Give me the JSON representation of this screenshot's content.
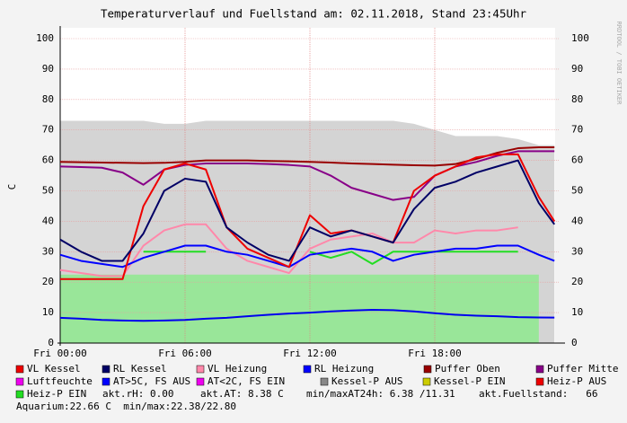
{
  "chart_data": {
    "type": "line",
    "title": "Temperaturverlauf und Fuellstand am: 02.11.2018, Stand 23:45Uhr",
    "y_label": "C",
    "side_text": "RRDTOOL / TOBI OETIKER",
    "x": [
      0,
      1,
      2,
      3,
      4,
      5,
      6,
      7,
      8,
      9,
      10,
      11,
      12,
      13,
      14,
      15,
      16,
      17,
      18,
      19,
      20,
      21,
      22,
      23,
      23.75
    ],
    "xlim": [
      0,
      24
    ],
    "xticks": [
      {
        "value": 0,
        "label": "Fri 00:00"
      },
      {
        "value": 6,
        "label": "Fri 06:00"
      },
      {
        "value": 12,
        "label": "Fri 12:00"
      },
      {
        "value": 18,
        "label": "Fri 18:00"
      }
    ],
    "ylim": [
      0,
      100
    ],
    "yticks": [
      0,
      10,
      20,
      30,
      40,
      50,
      60,
      70,
      80,
      90,
      100
    ],
    "grid": true,
    "series": [
      {
        "color": "#d4d4d4",
        "fill": true,
        "values": [
          73,
          73,
          73,
          73,
          73,
          72,
          72,
          73,
          73,
          73,
          73,
          73,
          73,
          73,
          73,
          73,
          73,
          72,
          70,
          68,
          68,
          68,
          67,
          65,
          65
        ]
      },
      {
        "color": "#99e699",
        "fill": true,
        "values": [
          22.5,
          22.5,
          22.5,
          22.5,
          22.5,
          22.5,
          22.5,
          22.5,
          22.5,
          22.5,
          22.5,
          22.5,
          22.5,
          22.5,
          22.5,
          22.5,
          22.5,
          22.5,
          22.5,
          22.5,
          22.5,
          22.5,
          22.5,
          22.5,
          null
        ]
      },
      {
        "color": "#0000ee",
        "values": [
          8.3,
          8,
          7.6,
          7.4,
          7.3,
          7.4,
          7.6,
          8,
          8.3,
          8.8,
          9.3,
          9.7,
          10,
          10.4,
          10.7,
          10.9,
          10.8,
          10.4,
          9.8,
          9.3,
          9,
          8.8,
          8.5,
          8.4,
          8.38
        ]
      },
      {
        "name": "VL Heizung",
        "color": "#ff88aa",
        "values": [
          24,
          23,
          22,
          22,
          32,
          37,
          39,
          39,
          31,
          27,
          25,
          23,
          31,
          34,
          35,
          36,
          33,
          33,
          37,
          36,
          37,
          37,
          38,
          null,
          null
        ]
      },
      {
        "name": "Heiz-P EIN",
        "color": "#22dd22",
        "values": [
          null,
          null,
          null,
          null,
          30,
          30,
          30,
          30,
          null,
          null,
          null,
          null,
          30,
          28,
          30,
          26,
          30,
          30,
          30,
          30,
          30,
          30,
          30,
          null,
          null
        ]
      },
      {
        "name": "RL Heizung",
        "color": "#0000ff",
        "values": [
          29,
          27,
          26,
          25,
          28,
          30,
          32,
          32,
          30,
          29,
          27,
          25,
          29,
          30,
          31,
          30,
          27,
          29,
          30,
          31,
          31,
          32,
          32,
          29,
          27
        ]
      },
      {
        "name": "Puffer Mitte",
        "color": "#880088",
        "values": [
          58,
          57.8,
          57.6,
          56,
          52,
          57,
          58.5,
          59,
          59,
          59,
          58.8,
          58.5,
          58,
          55,
          51,
          49,
          47,
          48,
          55,
          58,
          59.5,
          61.5,
          63,
          63,
          63
        ]
      },
      {
        "name": "Puffer Oben",
        "color": "#990000",
        "values": [
          59.5,
          59.4,
          59.3,
          59.2,
          59.1,
          59.2,
          59.5,
          60,
          60,
          60,
          59.8,
          59.7,
          59.5,
          59.3,
          59,
          58.8,
          58.6,
          58.4,
          58.3,
          58.8,
          60.5,
          62.5,
          64,
          64.3,
          64.3
        ]
      },
      {
        "name": "VL Kessel",
        "color": "#ee0000",
        "values": [
          21,
          21,
          21,
          21,
          45,
          57,
          59,
          57,
          38,
          31,
          28,
          25,
          42,
          36,
          37,
          35,
          33,
          50,
          55,
          58,
          61,
          62,
          62,
          48,
          40
        ]
      },
      {
        "name": "RL Kessel",
        "color": "#000066",
        "values": [
          34,
          30,
          27,
          27,
          36,
          50,
          54,
          53,
          38,
          33,
          29,
          27,
          38,
          35,
          37,
          35,
          33,
          44,
          51,
          53,
          56,
          58,
          60,
          46,
          39
        ]
      }
    ],
    "legend": [
      {
        "label": "VL Kessel",
        "color": "#ee0000"
      },
      {
        "label": "RL Kessel",
        "color": "#000066"
      },
      {
        "label": "VL Heizung",
        "color": "#ff88aa"
      },
      {
        "label": "RL Heizung",
        "color": "#0000ff"
      },
      {
        "label": "Puffer Oben",
        "color": "#990000"
      },
      {
        "label": "Puffer Mitte",
        "color": "#880088"
      },
      {
        "label": "Luftfeuchte",
        "color": "#ee00ee"
      },
      {
        "label": "AT>5C, FS AUS",
        "color": "#0000ff"
      },
      {
        "label": "AT<2C, FS EIN",
        "color": "#ee00ee"
      },
      {
        "label": "Kessel-P AUS",
        "color": "#888888"
      },
      {
        "label": "Kessel-P EIN",
        "color": "#cccc00"
      },
      {
        "label": "Heiz-P AUS",
        "color": "#ee0000"
      },
      {
        "label": "Heiz-P EIN",
        "color": "#22dd22"
      }
    ],
    "info": [
      "akt.rH: 0.00",
      "akt.AT: 8.38 C",
      "min/maxAT24h: 6.38 /11.31",
      "akt.Fuellstand:   66",
      "Aquarium:22.66 C  min/max:22.38/22.80"
    ]
  }
}
